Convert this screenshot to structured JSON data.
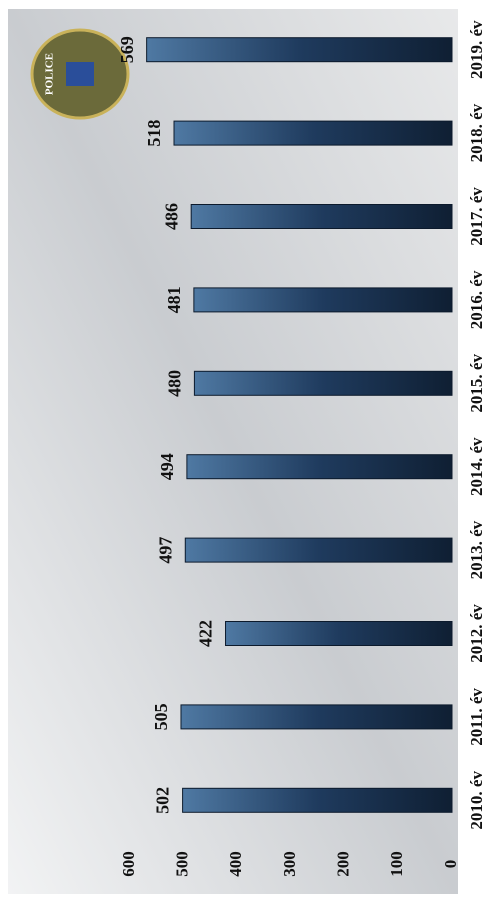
{
  "chart_data": {
    "type": "bar",
    "categories": [
      "2010. év",
      "2011. év",
      "2012. év",
      "2013. év",
      "2014. év",
      "2015. év",
      "2016. év",
      "2017. év",
      "2018. év",
      "2019. év"
    ],
    "values": [
      502,
      505,
      422,
      497,
      494,
      480,
      481,
      486,
      518,
      569
    ],
    "color": "#1f3b5e",
    "ylim": [
      0,
      600
    ],
    "yticks": [
      0,
      100,
      200,
      300,
      400,
      500,
      600
    ],
    "grid": false,
    "logo_text": "POLICE"
  }
}
